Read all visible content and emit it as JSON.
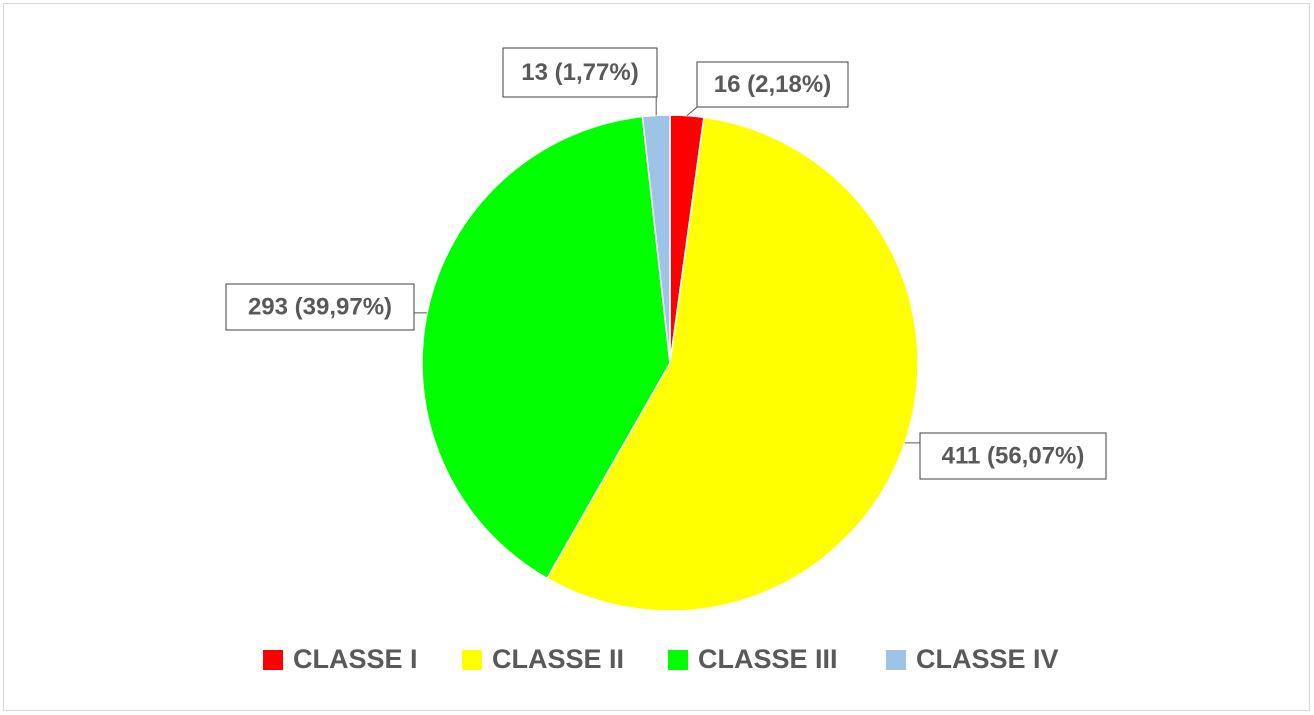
{
  "chart_data": {
    "type": "pie",
    "categories": [
      "CLASSE I",
      "CLASSE II",
      "CLASSE III",
      "CLASSE IV"
    ],
    "values": [
      16,
      411,
      293,
      13
    ],
    "value_labels": [
      "16 (2,18%)",
      "411 (56,07%)",
      "293 (39,97%)",
      "13 (1,77%)"
    ],
    "colors": [
      "#ff0000",
      "#ffff00",
      "#00ff00",
      "#9dc3e6"
    ],
    "legend": "bottom"
  }
}
